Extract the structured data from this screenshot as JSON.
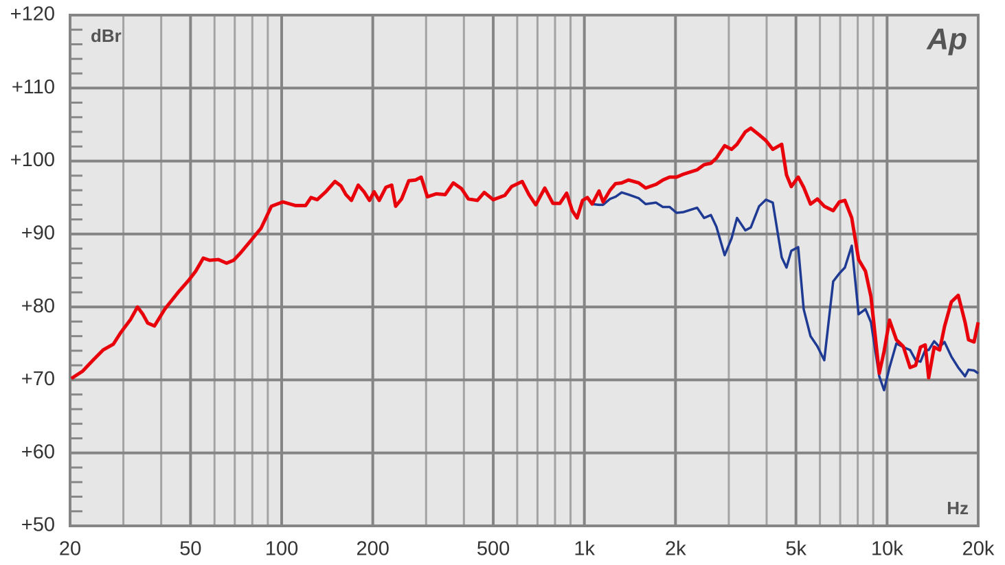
{
  "chart_data": {
    "type": "line",
    "y_unit_label": "dBr",
    "x_unit_label": "Hz",
    "logo": "Ap",
    "log_x": true,
    "grid": true,
    "xlim": [
      20,
      20000
    ],
    "ylim": [
      50,
      120
    ],
    "xticks": [
      20,
      50,
      100,
      200,
      500,
      {
        "value": 1000,
        "label": "1k"
      },
      {
        "value": 2000,
        "label": "2k"
      },
      {
        "value": 5000,
        "label": "5k"
      },
      {
        "value": 10000,
        "label": "10k"
      },
      {
        "value": 20000,
        "label": "20k"
      }
    ],
    "yticks": [
      {
        "value": 50,
        "label": "+50"
      },
      {
        "value": 60,
        "label": "+60"
      },
      {
        "value": 70,
        "label": "+70"
      },
      {
        "value": 80,
        "label": "+80"
      },
      {
        "value": 90,
        "label": "+90"
      },
      {
        "value": 100,
        "label": "+100"
      },
      {
        "value": 110,
        "label": "+110"
      },
      {
        "value": 120,
        "label": "+120"
      }
    ],
    "x": [
      20.2,
      22,
      23.8,
      25.7,
      27.8,
      29.3,
      31.7,
      33.4,
      34.8,
      36.1,
      38,
      41.1,
      45.7,
      49.4,
      52,
      55.1,
      57.8,
      61.8,
      65.8,
      69.4,
      73.1,
      79.1,
      85.5,
      92.5,
      101,
      111,
      120,
      125,
      131,
      140,
      150,
      157,
      163,
      170,
      179,
      187,
      195,
      202,
      210,
      221,
      231,
      238,
      249,
      263,
      277,
      289,
      303,
      324,
      347,
      369,
      393,
      414,
      443,
      467,
      500,
      546,
      575,
      623,
      656,
      691,
      740,
      787,
      830,
      874,
      912,
      946,
      986,
      1023,
      1061,
      1118,
      1153,
      1215,
      1267,
      1328,
      1399,
      1513,
      1594,
      1724,
      1817,
      1914,
      2017,
      2124,
      2358,
      2486,
      2618,
      2730,
      2907,
      3064,
      3194,
      3402,
      3547,
      3777,
      3979,
      4192,
      4486,
      4653,
      4826,
      5086,
      5302,
      5586,
      5886,
      6202,
      6637,
      6956,
      7254,
      7643,
      8053,
      8485,
      8846,
      9421,
      9772,
      10186,
      10732,
      11307,
      11914,
      12428,
      12892,
      13366,
      13722,
      14306,
      14920,
      15476,
      16306,
      17180,
      18100,
      18580,
      19374,
      20000
    ],
    "series": [
      {
        "color": "#1f3a93",
        "values": [
          70.2,
          71.2,
          72.7,
          74.1,
          74.9,
          76.4,
          78.3,
          80.0,
          79.0,
          77.8,
          77.4,
          79.7,
          82.1,
          83.7,
          84.9,
          86.7,
          86.4,
          86.5,
          86.0,
          86.4,
          87.4,
          89.1,
          90.8,
          93.8,
          94.4,
          93.9,
          93.9,
          95.0,
          94.7,
          95.8,
          97.2,
          96.6,
          95.4,
          94.6,
          96.7,
          95.8,
          94.6,
          95.8,
          94.6,
          96.4,
          96.7,
          93.8,
          94.8,
          97.3,
          97.4,
          97.8,
          95.1,
          95.5,
          95.4,
          97.0,
          96.2,
          94.8,
          94.6,
          95.7,
          94.7,
          95.3,
          96.5,
          97.2,
          95.4,
          94.0,
          96.3,
          94.2,
          94.2,
          95.6,
          93.2,
          92.2,
          94.6,
          95.0,
          94.1,
          94.0,
          94.0,
          94.8,
          95.1,
          95.7,
          95.4,
          94.9,
          94.1,
          94.3,
          93.7,
          93.7,
          92.9,
          93.0,
          93.6,
          92.2,
          92.6,
          91.0,
          87.1,
          89.4,
          92.2,
          90.5,
          90.9,
          93.8,
          94.7,
          94.3,
          86.8,
          85.4,
          87.7,
          88.2,
          79.7,
          76.0,
          74.6,
          72.7,
          83.5,
          84.6,
          85.4,
          88.4,
          79.0,
          79.7,
          77.9,
          70.5,
          68.6,
          71.7,
          75.0,
          74.5,
          74.1,
          72.7,
          72.5,
          74.1,
          74.1,
          75.3,
          74.5,
          75.2,
          73.2,
          71.7,
          70.5,
          71.4,
          71.3,
          70.9
        ]
      },
      {
        "color": "#e8000b",
        "values": [
          70.2,
          71.2,
          72.7,
          74.1,
          74.9,
          76.4,
          78.3,
          80.0,
          79.0,
          77.8,
          77.4,
          79.7,
          82.1,
          83.7,
          84.9,
          86.7,
          86.4,
          86.5,
          86.0,
          86.4,
          87.4,
          89.1,
          90.8,
          93.8,
          94.4,
          93.9,
          93.9,
          95.0,
          94.7,
          95.8,
          97.2,
          96.6,
          95.4,
          94.6,
          96.7,
          95.8,
          94.6,
          95.8,
          94.6,
          96.4,
          96.7,
          93.8,
          94.8,
          97.3,
          97.4,
          97.8,
          95.1,
          95.5,
          95.4,
          97.0,
          96.2,
          94.8,
          94.6,
          95.7,
          94.7,
          95.3,
          96.5,
          97.2,
          95.4,
          94.0,
          96.3,
          94.2,
          94.2,
          95.6,
          93.2,
          92.2,
          94.6,
          95.0,
          94.1,
          95.9,
          94.4,
          96.0,
          96.9,
          97.0,
          97.4,
          97.0,
          96.3,
          96.8,
          97.4,
          97.8,
          97.8,
          98.2,
          98.8,
          99.5,
          99.7,
          100.4,
          102.1,
          101.6,
          102.3,
          104.0,
          104.5,
          103.6,
          102.8,
          101.6,
          102.3,
          98.1,
          96.5,
          97.8,
          96.4,
          94.1,
          94.8,
          93.8,
          93.2,
          94.4,
          94.6,
          92.2,
          86.5,
          84.9,
          81.4,
          70.9,
          73.9,
          78.2,
          75.5,
          74.6,
          71.7,
          72.0,
          74.5,
          74.8,
          70.3,
          74.5,
          74.1,
          77.3,
          80.7,
          81.6,
          77.9,
          75.5,
          75.2,
          77.9
        ]
      }
    ]
  }
}
